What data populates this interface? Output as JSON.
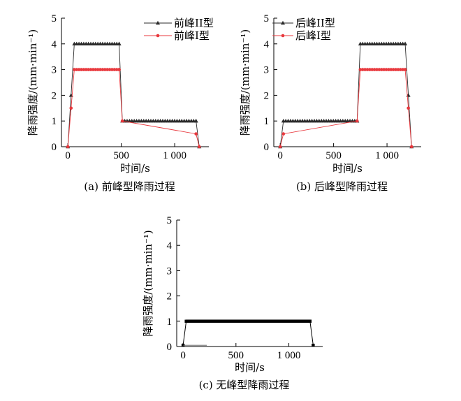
{
  "chart_data": [
    {
      "type": "line",
      "caption": "(a) 前峰型降雨过程",
      "xlabel": "时间/s",
      "ylabel": "降雨强度/(mm·min⁻¹)",
      "xlim": [
        -60,
        1320
      ],
      "ylim": [
        0,
        5
      ],
      "xticks": [
        0,
        500,
        1000
      ],
      "xtick_labels": [
        "0",
        "500",
        "1 000"
      ],
      "yticks": [
        0,
        1,
        2,
        3,
        4,
        5
      ],
      "ytick_labels": [
        "0",
        "1",
        "2",
        "3",
        "4",
        "5"
      ],
      "legend_position": "top-right",
      "series": [
        {
          "name": "前峰II型",
          "color": "#2b2b2b",
          "marker": "triangle",
          "x": [
            0,
            30,
            60,
            480,
            510,
            1200,
            1230
          ],
          "y": [
            0,
            2,
            4,
            4,
            1,
            1,
            0
          ]
        },
        {
          "name": "前峰I型",
          "color": "#e8383d",
          "marker": "circle",
          "x": [
            0,
            30,
            60,
            480,
            510,
            1200,
            1230
          ],
          "y": [
            0,
            1.5,
            3,
            3,
            1,
            0.5,
            0
          ]
        }
      ]
    },
    {
      "type": "line",
      "caption": "(b) 后峰型降雨过程",
      "xlabel": "时间/s",
      "ylabel": "降雨强度/(mm·min⁻¹)",
      "xlim": [
        -60,
        1320
      ],
      "ylim": [
        0,
        5
      ],
      "xticks": [
        0,
        500,
        1000
      ],
      "xtick_labels": [
        "0",
        "500",
        "1 000"
      ],
      "yticks": [
        0,
        1,
        2,
        3,
        4,
        5
      ],
      "ytick_labels": [
        "0",
        "1",
        "2",
        "3",
        "4",
        "5"
      ],
      "legend_position": "top-left",
      "series": [
        {
          "name": "后峰II型",
          "color": "#2b2b2b",
          "marker": "triangle",
          "x": [
            0,
            30,
            720,
            750,
            1170,
            1200,
            1230
          ],
          "y": [
            0,
            1,
            1,
            4,
            4,
            2,
            0
          ]
        },
        {
          "name": "后峰I型",
          "color": "#e8383d",
          "marker": "circle",
          "x": [
            0,
            30,
            720,
            750,
            1170,
            1200,
            1230
          ],
          "y": [
            0,
            0.5,
            1,
            3,
            3,
            1.5,
            0
          ]
        }
      ]
    },
    {
      "type": "line",
      "caption": "(c) 无峰型降雨过程",
      "xlabel": "时间/s",
      "ylabel": "降雨强度/(mm·min⁻¹)",
      "xlim": [
        -60,
        1320
      ],
      "ylim": [
        0,
        5
      ],
      "xticks": [
        0,
        500,
        1000
      ],
      "xtick_labels": [
        "0",
        "500",
        "1 000"
      ],
      "yticks": [
        0,
        1,
        2,
        3,
        4,
        5
      ],
      "ytick_labels": [
        "0",
        "1",
        "2",
        "3",
        "4",
        "5"
      ],
      "series": [
        {
          "color": "#000000",
          "marker": "square",
          "x": [
            0,
            30,
            1200,
            1230
          ],
          "y": [
            0.05,
            1,
            1,
            0.05
          ]
        }
      ]
    }
  ]
}
